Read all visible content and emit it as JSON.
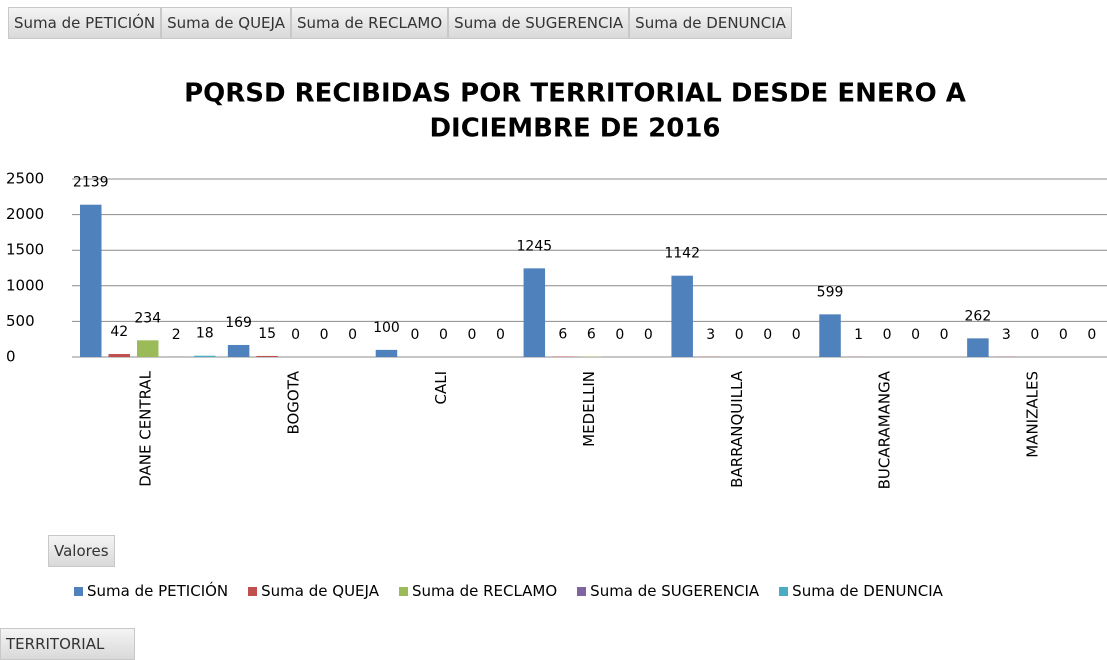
{
  "chart_data": {
    "type": "bar",
    "title": [
      "PQRSD RECIBIDAS POR TERRITORIAL DESDE ENERO A",
      "DICIEMBRE DE 2016"
    ],
    "categories": [
      "DANE CENTRAL",
      "BOGOTA",
      "CALI",
      "MEDELLIN",
      "BARRANQUILLA",
      "BUCARAMANGA",
      "MANIZALES"
    ],
    "series": [
      {
        "name": "Suma de PETICIÓN",
        "color": "#4f81bd",
        "values": [
          2139,
          169,
          100,
          1245,
          1142,
          599,
          262
        ]
      },
      {
        "name": "Suma de QUEJA",
        "color": "#c0504d",
        "values": [
          42,
          15,
          0,
          6,
          3,
          1,
          3
        ]
      },
      {
        "name": "Suma de RECLAMO",
        "color": "#9bbb59",
        "values": [
          234,
          0,
          0,
          6,
          0,
          0,
          0
        ]
      },
      {
        "name": "Suma de SUGERENCIA",
        "color": "#8064a2",
        "values": [
          2,
          0,
          0,
          0,
          0,
          0,
          0
        ]
      },
      {
        "name": "Suma de DENUNCIA",
        "color": "#4bacc6",
        "values": [
          18,
          0,
          0,
          0,
          0,
          0,
          0
        ]
      }
    ],
    "ylim": [
      0,
      2500
    ],
    "yticks": [
      0,
      500,
      1000,
      1500,
      2000,
      2500
    ],
    "grid": true,
    "legend": "bottom",
    "field_buttons": {
      "values": "Valores",
      "axis": "TERRITORIAL"
    }
  }
}
